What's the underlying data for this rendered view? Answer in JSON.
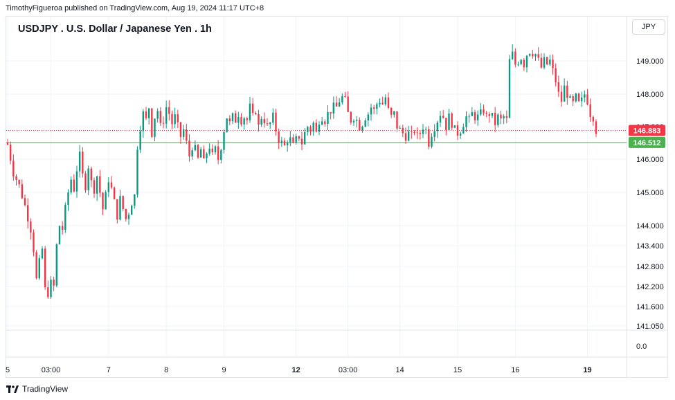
{
  "header": {
    "publisher": "TimothyFigueroa published on TradingView.com, Aug 19, 2024 11:17 UTC+8",
    "currency_button": "JPY"
  },
  "footer": {
    "brand": "TradingView",
    "logo_icon": "tradingview-logo-icon"
  },
  "colors": {
    "up": "#089981",
    "down": "#f23645",
    "last_price": "#f23645",
    "hline": "#4caf50",
    "grid": "#f0f3fa"
  },
  "chart_data": {
    "type": "candlestick",
    "title": "USDJPY . U.S. Dollar / Japanese Yen . 1h",
    "y_ticks": [
      {
        "value": 149.0,
        "label": "149.000"
      },
      {
        "value": 148.0,
        "label": "148.000"
      },
      {
        "value": 147.0,
        "label": "147.000"
      },
      {
        "value": 146.0,
        "label": "146.000"
      },
      {
        "value": 145.0,
        "label": "145.000"
      },
      {
        "value": 144.0,
        "label": "144.000"
      },
      {
        "value": 143.4,
        "label": "143.400"
      },
      {
        "value": 142.8,
        "label": "142.800"
      },
      {
        "value": 142.2,
        "label": "142.200"
      },
      {
        "value": 141.6,
        "label": "141.600"
      },
      {
        "value": 141.05,
        "label": "141.050"
      }
    ],
    "sub_axis_label": "0.0",
    "x_ticks": [
      {
        "label": "5",
        "index": 0,
        "bold": false
      },
      {
        "label": "03:00",
        "index": 15,
        "bold": false
      },
      {
        "label": "7",
        "index": 35,
        "bold": false
      },
      {
        "label": "8",
        "index": 55,
        "bold": false
      },
      {
        "label": "9",
        "index": 75,
        "bold": false
      },
      {
        "label": "12",
        "index": 100,
        "bold": true
      },
      {
        "label": "03:00",
        "index": 118,
        "bold": false
      },
      {
        "label": "14",
        "index": 136,
        "bold": false
      },
      {
        "label": "15",
        "index": 156,
        "bold": false
      },
      {
        "label": "16",
        "index": 176,
        "bold": false
      },
      {
        "label": "19",
        "index": 201,
        "bold": true
      }
    ],
    "last_price": {
      "value": 146.883,
      "label": "146.883"
    },
    "horizontal_line": {
      "value": 146.512,
      "label": "146.512"
    },
    "close_path": [
      [
        0,
        146.45
      ],
      [
        2,
        145.6
      ],
      [
        4,
        145.2
      ],
      [
        6,
        144.6
      ],
      [
        8,
        143.9
      ],
      [
        9,
        143.3
      ],
      [
        10,
        142.4
      ],
      [
        11,
        142.9
      ],
      [
        12,
        143.3
      ],
      [
        13,
        142.1
      ],
      [
        14,
        142.0
      ],
      [
        15,
        142.3
      ],
      [
        16,
        142.2
      ],
      [
        17,
        143.4
      ],
      [
        18,
        144.0
      ],
      [
        19,
        143.9
      ],
      [
        20,
        144.5
      ],
      [
        21,
        145.0
      ],
      [
        22,
        145.4
      ],
      [
        23,
        145.1
      ],
      [
        24,
        145.7
      ],
      [
        25,
        146.1
      ],
      [
        26,
        145.5
      ],
      [
        27,
        145.2
      ],
      [
        28,
        145.8
      ],
      [
        29,
        145.3
      ],
      [
        30,
        145.1
      ],
      [
        31,
        145.5
      ],
      [
        32,
        145.0
      ],
      [
        33,
        144.5
      ],
      [
        34,
        144.9
      ],
      [
        35,
        145.4
      ],
      [
        36,
        145.1
      ],
      [
        37,
        144.7
      ],
      [
        38,
        144.3
      ],
      [
        39,
        144.8
      ],
      [
        40,
        144.5
      ],
      [
        41,
        144.2
      ],
      [
        42,
        144.4
      ],
      [
        43,
        144.7
      ],
      [
        44,
        144.9
      ],
      [
        45,
        146.4
      ],
      [
        46,
        147.0
      ],
      [
        47,
        147.4
      ],
      [
        48,
        147.2
      ],
      [
        49,
        147.6
      ],
      [
        50,
        146.8
      ],
      [
        51,
        147.3
      ],
      [
        52,
        147.5
      ],
      [
        53,
        147.0
      ],
      [
        54,
        147.2
      ],
      [
        55,
        147.6
      ],
      [
        56,
        147.4
      ],
      [
        57,
        147.1
      ],
      [
        58,
        147.3
      ],
      [
        59,
        147.0
      ],
      [
        60,
        146.7
      ],
      [
        61,
        146.9
      ],
      [
        62,
        146.5
      ],
      [
        63,
        146.1
      ],
      [
        64,
        146.4
      ],
      [
        65,
        146.3
      ],
      [
        66,
        146.0
      ],
      [
        67,
        146.3
      ],
      [
        68,
        145.9
      ],
      [
        69,
        146.2
      ],
      [
        70,
        146.4
      ],
      [
        71,
        146.1
      ],
      [
        72,
        146.3
      ],
      [
        73,
        146.0
      ],
      [
        74,
        146.4
      ],
      [
        75,
        146.9
      ],
      [
        76,
        147.3
      ],
      [
        77,
        147.1
      ],
      [
        78,
        147.3
      ],
      [
        79,
        147.2
      ],
      [
        80,
        147.4
      ],
      [
        81,
        147.2
      ],
      [
        82,
        147.3
      ],
      [
        83,
        147.2
      ],
      [
        84,
        147.6
      ],
      [
        85,
        147.3
      ],
      [
        86,
        147.5
      ],
      [
        87,
        147.0
      ],
      [
        88,
        147.3
      ],
      [
        89,
        147.2
      ],
      [
        90,
        147.0
      ],
      [
        91,
        147.1
      ],
      [
        92,
        147.3
      ],
      [
        93,
        146.9
      ],
      [
        94,
        146.6
      ],
      [
        95,
        146.5
      ],
      [
        96,
        146.4
      ],
      [
        97,
        146.6
      ],
      [
        98,
        146.6
      ],
      [
        99,
        146.4
      ],
      [
        100,
        146.6
      ],
      [
        101,
        146.7
      ],
      [
        102,
        146.5
      ],
      [
        103,
        146.8
      ],
      [
        104,
        147.0
      ],
      [
        105,
        146.9
      ],
      [
        106,
        147.1
      ],
      [
        107,
        146.8
      ],
      [
        108,
        147.2
      ],
      [
        109,
        147.3
      ],
      [
        110,
        147.2
      ],
      [
        111,
        147.4
      ],
      [
        112,
        147.5
      ],
      [
        113,
        147.6
      ],
      [
        114,
        147.6
      ],
      [
        115,
        147.8
      ],
      [
        116,
        147.9
      ],
      [
        117,
        147.8
      ],
      [
        118,
        147.4
      ],
      [
        119,
        147.2
      ],
      [
        120,
        147.3
      ],
      [
        121,
        147.2
      ],
      [
        122,
        147.0
      ],
      [
        123,
        147.1
      ],
      [
        124,
        147.3
      ],
      [
        125,
        147.4
      ],
      [
        126,
        147.6
      ],
      [
        127,
        147.5
      ],
      [
        128,
        147.7
      ],
      [
        129,
        147.8
      ],
      [
        130,
        147.7
      ],
      [
        131,
        147.9
      ],
      [
        132,
        147.5
      ],
      [
        133,
        147.3
      ],
      [
        134,
        147.4
      ],
      [
        135,
        147.0
      ],
      [
        136,
        146.9
      ],
      [
        137,
        146.8
      ],
      [
        138,
        146.7
      ],
      [
        139,
        146.8
      ],
      [
        140,
        146.7
      ],
      [
        141,
        146.9
      ],
      [
        142,
        146.7
      ],
      [
        143,
        146.8
      ],
      [
        144,
        147.0
      ],
      [
        145,
        146.9
      ],
      [
        146,
        146.5
      ],
      [
        147,
        146.8
      ],
      [
        148,
        147.0
      ],
      [
        149,
        147.2
      ],
      [
        150,
        147.4
      ],
      [
        151,
        147.3
      ],
      [
        152,
        147.0
      ],
      [
        153,
        147.3
      ],
      [
        154,
        147.1
      ],
      [
        155,
        146.9
      ],
      [
        156,
        146.8
      ],
      [
        157,
        146.9
      ],
      [
        158,
        147.1
      ],
      [
        159,
        147.3
      ],
      [
        160,
        147.2
      ],
      [
        161,
        147.4
      ],
      [
        162,
        147.3
      ],
      [
        163,
        147.3
      ],
      [
        164,
        147.4
      ],
      [
        165,
        147.5
      ],
      [
        166,
        147.3
      ],
      [
        167,
        147.4
      ],
      [
        168,
        147.3
      ],
      [
        169,
        147.1
      ],
      [
        170,
        147.3
      ],
      [
        171,
        147.2
      ],
      [
        172,
        147.3
      ],
      [
        173,
        147.2
      ],
      [
        174,
        149.0
      ],
      [
        175,
        149.2
      ],
      [
        176,
        148.9
      ],
      [
        177,
        149.0
      ],
      [
        178,
        149.1
      ],
      [
        179,
        148.9
      ],
      [
        180,
        149.2
      ],
      [
        181,
        149.3
      ],
      [
        182,
        149.25
      ],
      [
        183,
        149.2
      ],
      [
        184,
        149.0
      ],
      [
        185,
        148.8
      ],
      [
        186,
        149.0
      ],
      [
        187,
        148.9
      ],
      [
        188,
        149.0
      ],
      [
        189,
        148.7
      ],
      [
        190,
        148.4
      ],
      [
        191,
        148.0
      ],
      [
        192,
        147.8
      ],
      [
        193,
        148.2
      ],
      [
        194,
        148.0
      ],
      [
        195,
        147.8
      ],
      [
        196,
        147.7
      ],
      [
        197,
        147.9
      ],
      [
        198,
        147.7
      ],
      [
        199,
        147.8
      ],
      [
        200,
        148.0
      ],
      [
        201,
        147.8
      ],
      [
        202,
        147.4
      ],
      [
        203,
        147.3
      ],
      [
        204,
        146.883
      ]
    ]
  }
}
